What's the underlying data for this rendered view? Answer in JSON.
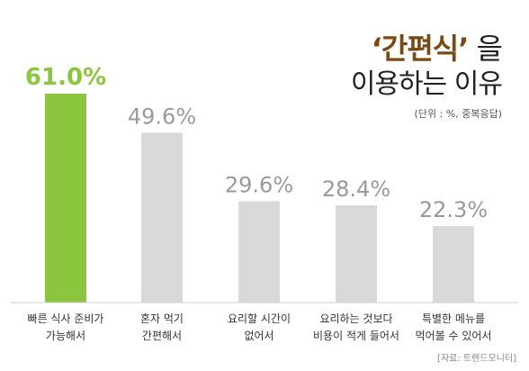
{
  "title": {
    "accent": "‘간편식’",
    "rest": "을",
    "line2": "이용하는 이유"
  },
  "unit_note": "(단위 : %, 중복응답)",
  "source": "[자료: 트렌드모니터]",
  "colors": {
    "highlight": "#8cc63f",
    "bar": "#d9d9d9",
    "value_text": "#9a9a9a",
    "title_accent": "#7a4a16"
  },
  "chart_data": {
    "type": "bar",
    "categories": [
      [
        "빠른 식사 준비가",
        "가능해서"
      ],
      [
        "혼자 먹기",
        "간편해서"
      ],
      [
        "요리할 시간이",
        "없어서"
      ],
      [
        "요리하는 것보다",
        "비용이 적게 들어서"
      ],
      [
        "특별한 메뉴를",
        "먹어볼 수 있어서"
      ]
    ],
    "values": [
      61.0,
      49.6,
      29.6,
      28.4,
      22.3
    ],
    "value_labels": [
      "61.0%",
      "49.6%",
      "29.6%",
      "28.4%",
      "22.3%"
    ],
    "highlight_index": 0,
    "ylim": [
      0,
      61
    ],
    "grid": false,
    "legend": "none"
  }
}
